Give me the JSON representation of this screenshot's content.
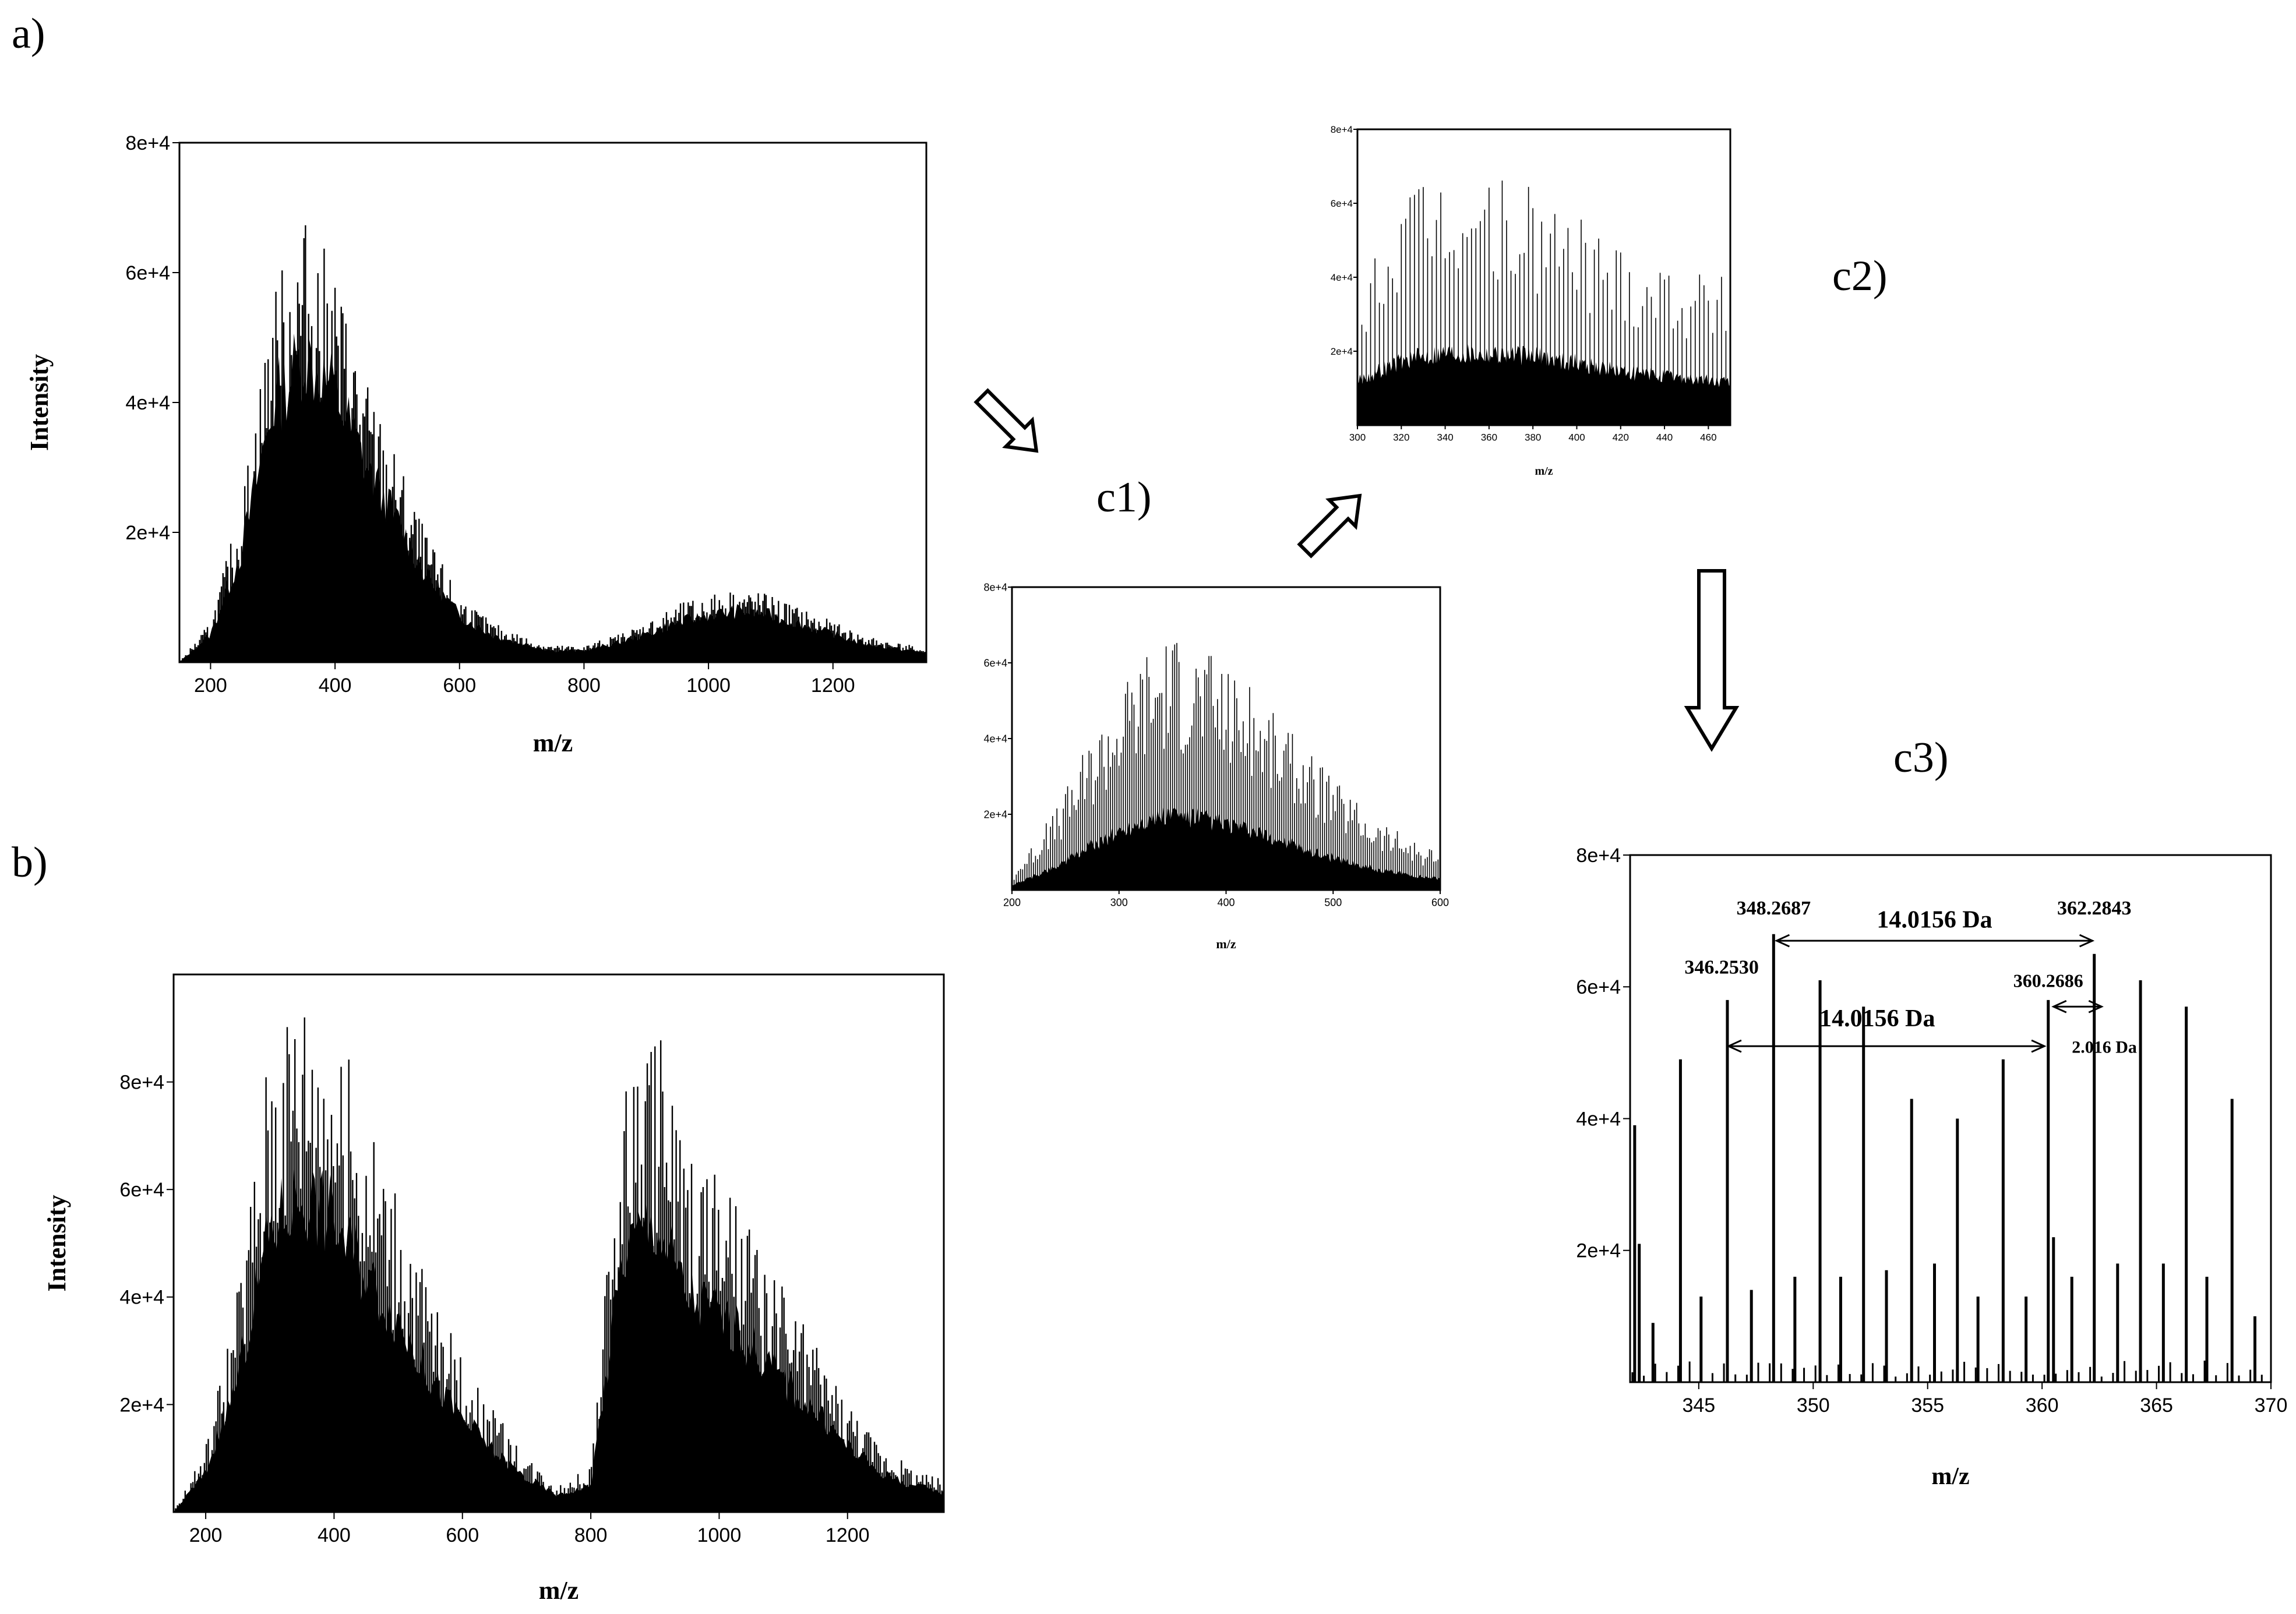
{
  "panel_labels": {
    "a": "a)",
    "b": "b)",
    "c1": "c1)",
    "c2": "c2)",
    "c3": "c3)"
  },
  "chart_data": [
    {
      "id": "a",
      "type": "bar",
      "xlabel": "m/z",
      "ylabel": "Intensity",
      "xlim": [
        150,
        1350
      ],
      "ylim": [
        0,
        80000
      ],
      "x_ticks": [
        "200",
        "400",
        "600",
        "800",
        "1000",
        "1200"
      ],
      "y_ticks": [
        "2e+4",
        "4e+4",
        "6e+4",
        "8e+4"
      ],
      "envelope": [
        [
          150,
          0
        ],
        [
          200,
          6000
        ],
        [
          250,
          24000
        ],
        [
          300,
          55000
        ],
        [
          350,
          66000
        ],
        [
          400,
          58000
        ],
        [
          450,
          42000
        ],
        [
          500,
          30000
        ],
        [
          550,
          18000
        ],
        [
          600,
          10000
        ],
        [
          650,
          6000
        ],
        [
          700,
          4000
        ],
        [
          750,
          2500
        ],
        [
          800,
          2500
        ],
        [
          850,
          4000
        ],
        [
          900,
          6000
        ],
        [
          950,
          8500
        ],
        [
          1000,
          10000
        ],
        [
          1050,
          11000
        ],
        [
          1100,
          10000
        ],
        [
          1150,
          8000
        ],
        [
          1200,
          6000
        ],
        [
          1250,
          4000
        ],
        [
          1300,
          3000
        ],
        [
          1350,
          2000
        ]
      ],
      "step": 2.5,
      "dense": 0.72
    },
    {
      "id": "b",
      "type": "bar",
      "xlabel": "m/z",
      "ylabel": "Intensity",
      "xlim": [
        150,
        1350
      ],
      "ylim": [
        0,
        100000
      ],
      "x_ticks": [
        "200",
        "400",
        "600",
        "800",
        "1000",
        "1200"
      ],
      "y_ticks": [
        "2e+4",
        "4e+4",
        "6e+4",
        "8e+4"
      ],
      "envelope": [
        [
          150,
          0
        ],
        [
          200,
          12000
        ],
        [
          250,
          40000
        ],
        [
          300,
          85000
        ],
        [
          350,
          96000
        ],
        [
          400,
          88000
        ],
        [
          450,
          72000
        ],
        [
          500,
          58000
        ],
        [
          550,
          40000
        ],
        [
          600,
          28000
        ],
        [
          650,
          18000
        ],
        [
          700,
          10000
        ],
        [
          750,
          5000
        ],
        [
          800,
          8000
        ],
        [
          850,
          78000
        ],
        [
          900,
          88000
        ],
        [
          950,
          65000
        ],
        [
          1000,
          60000
        ],
        [
          1050,
          50000
        ],
        [
          1100,
          40000
        ],
        [
          1150,
          30000
        ],
        [
          1200,
          20000
        ],
        [
          1250,
          12000
        ],
        [
          1300,
          8000
        ],
        [
          1350,
          6000
        ]
      ],
      "step": 3,
      "dense": 0.62
    },
    {
      "id": "c1",
      "type": "bar",
      "xlabel": "m/z",
      "ylabel": "",
      "xlim": [
        200,
        600
      ],
      "ylim": [
        0,
        80000
      ],
      "x_ticks": [
        "200",
        "300",
        "400",
        "500",
        "600"
      ],
      "y_ticks": [
        "2e+4",
        "4e+4",
        "6e+4",
        "8e+4"
      ],
      "envelope": [
        [
          200,
          4000
        ],
        [
          240,
          20000
        ],
        [
          280,
          42000
        ],
        [
          320,
          60000
        ],
        [
          350,
          66000
        ],
        [
          380,
          62000
        ],
        [
          420,
          52000
        ],
        [
          460,
          40000
        ],
        [
          500,
          28000
        ],
        [
          540,
          18000
        ],
        [
          580,
          12000
        ],
        [
          600,
          10000
        ]
      ],
      "step": 2,
      "dense": 0.3
    },
    {
      "id": "c2",
      "type": "bar",
      "xlabel": "m/z",
      "ylabel": "",
      "xlim": [
        300,
        470
      ],
      "ylim": [
        0,
        80000
      ],
      "x_ticks": [
        "300",
        "320",
        "340",
        "360",
        "380",
        "400",
        "420",
        "440",
        "460"
      ],
      "y_ticks": [
        "2e+4",
        "4e+4",
        "6e+4",
        "8e+4"
      ],
      "envelope": [
        [
          300,
          40000
        ],
        [
          320,
          58000
        ],
        [
          340,
          66000
        ],
        [
          360,
          64000
        ],
        [
          380,
          62000
        ],
        [
          400,
          56000
        ],
        [
          420,
          48000
        ],
        [
          440,
          44000
        ],
        [
          460,
          40000
        ],
        [
          470,
          38000
        ]
      ],
      "step": 2,
      "dense": 0.3
    },
    {
      "id": "c3",
      "type": "bar",
      "xlabel": "m/z",
      "ylabel": "",
      "xlim": [
        342,
        370
      ],
      "ylim": [
        0,
        80000
      ],
      "x_ticks": [
        "345",
        "350",
        "355",
        "360",
        "365",
        "370"
      ],
      "y_ticks": [
        "2e+4",
        "4e+4",
        "6e+4",
        "8e+4"
      ],
      "peaks": [
        [
          342.2,
          39000
        ],
        [
          342.4,
          21000
        ],
        [
          343.0,
          9000
        ],
        [
          344.2,
          49000
        ],
        [
          345.1,
          13000
        ],
        [
          346.25,
          58000
        ],
        [
          347.3,
          14000
        ],
        [
          348.27,
          68000
        ],
        [
          349.2,
          16000
        ],
        [
          350.3,
          61000
        ],
        [
          351.2,
          16000
        ],
        [
          352.2,
          57000
        ],
        [
          353.2,
          17000
        ],
        [
          354.3,
          43000
        ],
        [
          355.3,
          18000
        ],
        [
          356.3,
          40000
        ],
        [
          357.2,
          13000
        ],
        [
          358.3,
          49000
        ],
        [
          359.3,
          13000
        ],
        [
          360.27,
          58000
        ],
        [
          360.5,
          22000
        ],
        [
          361.3,
          16000
        ],
        [
          362.28,
          65000
        ],
        [
          363.3,
          18000
        ],
        [
          364.3,
          61000
        ],
        [
          365.3,
          18000
        ],
        [
          366.3,
          57000
        ],
        [
          367.2,
          16000
        ],
        [
          368.3,
          43000
        ],
        [
          369.3,
          10000
        ]
      ],
      "annotations": {
        "p1": "348.2687",
        "p2": "362.2843",
        "p3": "346.2530",
        "p4": "360.2686",
        "d1": "14.0156 Da",
        "d2": "14.0156 Da",
        "d3": "2.016 Da"
      }
    }
  ]
}
